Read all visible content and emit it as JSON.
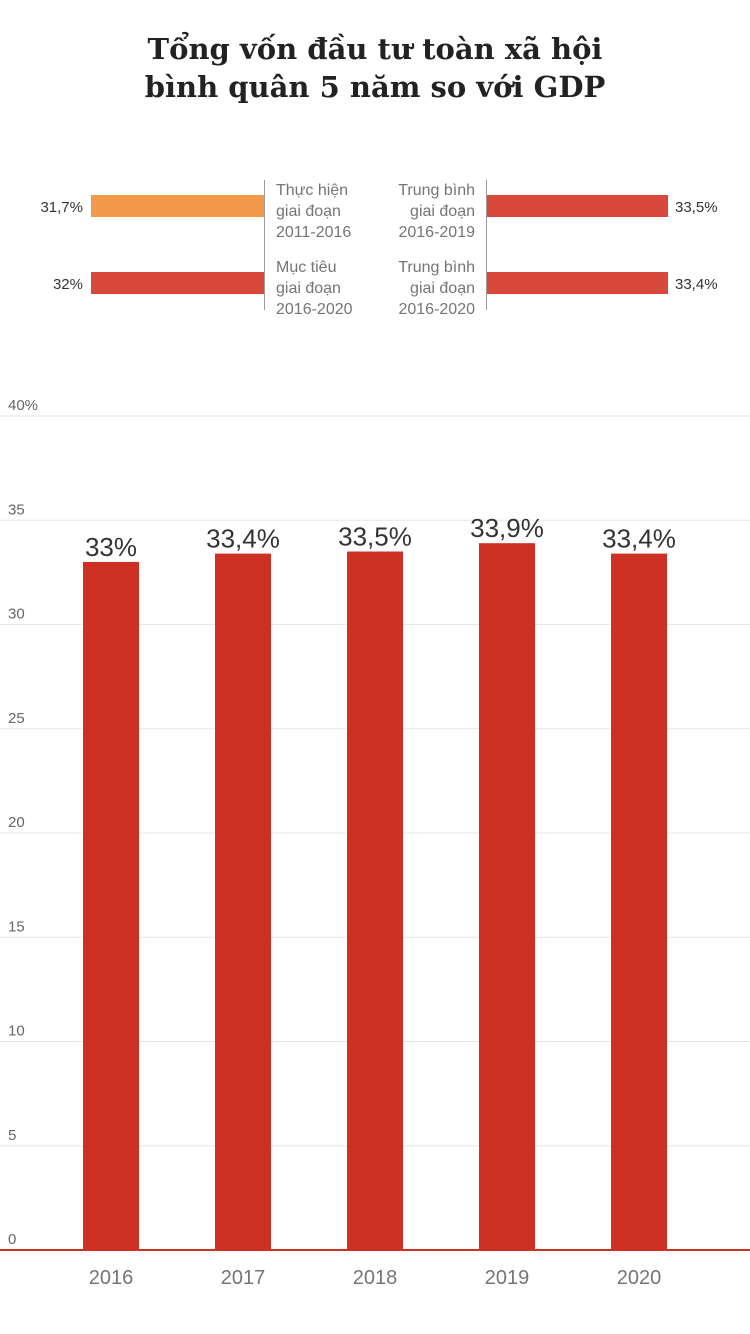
{
  "title": {
    "line1": "Tổng vốn đầu tư toàn xã hội",
    "line2": "bình quân 5 năm so với GDP"
  },
  "comparison": {
    "left": [
      {
        "label_lines": [
          "Thực hiện",
          "giai đoạn",
          "2011-2016"
        ],
        "value": 31.7,
        "value_label": "31,7%",
        "color": "#f2994a"
      },
      {
        "label_lines": [
          "Mục tiêu",
          "giai đoạn",
          "2016-2020"
        ],
        "value": 32,
        "value_label": "32%",
        "color": "#d9493b"
      }
    ],
    "right": [
      {
        "label_lines": [
          "Trung bình",
          "giai đoạn",
          "2016-2019"
        ],
        "value": 33.5,
        "value_label": "33,5%",
        "color": "#d9493b"
      },
      {
        "label_lines": [
          "Trung bình",
          "giai đoạn",
          "2016-2020"
        ],
        "value": 33.4,
        "value_label": "33,4%",
        "color": "#d9493b"
      }
    ]
  },
  "chart_data": {
    "type": "bar",
    "title": "Tổng vốn đầu tư toàn xã hội bình quân 5 năm so với GDP",
    "categories": [
      "2016",
      "2017",
      "2018",
      "2019",
      "2020"
    ],
    "values": [
      33,
      33.4,
      33.5,
      33.9,
      33.4
    ],
    "value_labels": [
      "33%",
      "33,4%",
      "33,5%",
      "33,9%",
      "33,4%"
    ],
    "ylim": [
      0,
      40
    ],
    "yticks": [
      0,
      5,
      10,
      15,
      20,
      25,
      30,
      35,
      40
    ],
    "ytick_labels": [
      "0",
      "5",
      "10",
      "15",
      "20",
      "25",
      "30",
      "35",
      "40%"
    ],
    "xlabel": "",
    "ylabel": "",
    "grid": true,
    "bar_color": "#cc3123",
    "baseline_color": "#cc3123"
  }
}
